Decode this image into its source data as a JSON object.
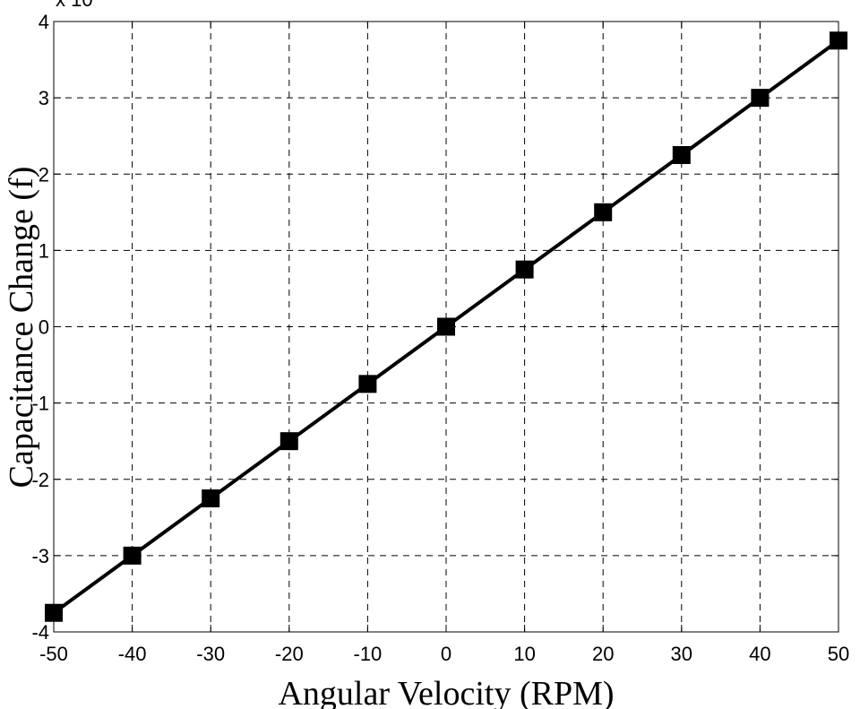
{
  "chart_data": {
    "type": "line",
    "title": "",
    "xlabel": "Angular Velocity (RPM)",
    "ylabel": "Capacitance Change (f)",
    "y_multiplier_label": "x 10",
    "xlim": [
      -50,
      50
    ],
    "ylim": [
      -4,
      4
    ],
    "xticks": [
      -50,
      -40,
      -30,
      -20,
      -10,
      0,
      10,
      20,
      30,
      40,
      50
    ],
    "yticks": [
      -4,
      -3,
      -2,
      -1,
      0,
      1,
      2,
      3,
      4
    ],
    "grid": true,
    "grid_style": "dashed",
    "line_color": "#000000",
    "marker": "square",
    "series": [
      {
        "x": [
          -50,
          -40,
          -30,
          -20,
          -10,
          0,
          10,
          20,
          30,
          40,
          50
        ],
        "y": [
          -3.75,
          -3.0,
          -2.25,
          -1.5,
          -0.75,
          0,
          0.75,
          1.5,
          2.25,
          3.0,
          3.75
        ]
      }
    ]
  }
}
